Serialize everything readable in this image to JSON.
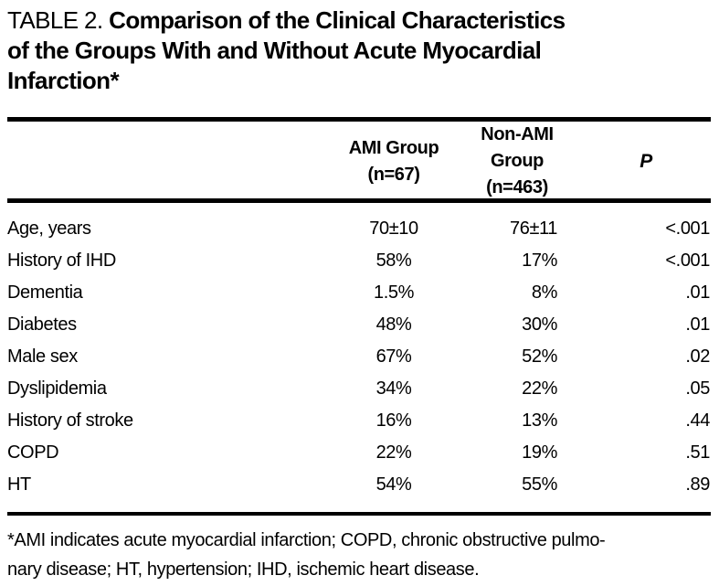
{
  "page": {
    "background": "#ffffff",
    "text_color": "#000000"
  },
  "title": {
    "label": "TABLE 2.",
    "line1": "Comparison of the Clinical Characteristics",
    "line2": "of the Groups With and Without Acute Myocardial",
    "line3": "Infarction*"
  },
  "table": {
    "columns": {
      "characteristic": "",
      "group1": {
        "name": "AMI Group",
        "n": "(n=67)"
      },
      "group2": {
        "name": "Non-AMI Group",
        "n": "(n=463)"
      },
      "p": "P"
    },
    "rows": [
      {
        "label": "Age, years",
        "ami": "70±10",
        "non_ami": "76±11",
        "p": "<.001"
      },
      {
        "label": "History of IHD",
        "ami": "58%",
        "non_ami": "17%",
        "p": "<.001"
      },
      {
        "label": "Dementia",
        "ami": "1.5%",
        "non_ami": "8%",
        "p": ".01"
      },
      {
        "label": "Diabetes",
        "ami": "48%",
        "non_ami": "30%",
        "p": ".01"
      },
      {
        "label": "Male sex",
        "ami": "67%",
        "non_ami": "52%",
        "p": ".02"
      },
      {
        "label": "Dyslipidemia",
        "ami": "34%",
        "non_ami": "22%",
        "p": ".05"
      },
      {
        "label": "History of stroke",
        "ami": "16%",
        "non_ami": "13%",
        "p": ".44"
      },
      {
        "label": "COPD",
        "ami": "22%",
        "non_ami": "19%",
        "p": ".51"
      },
      {
        "label": "HT",
        "ami": "54%",
        "non_ami": "55%",
        "p": ".89"
      }
    ]
  },
  "footnote": {
    "line1": "*AMI indicates acute myocardial infarction; COPD, chronic obstructive pulmo-",
    "line2": "nary disease; HT, hypertension; IHD, ischemic heart disease."
  }
}
